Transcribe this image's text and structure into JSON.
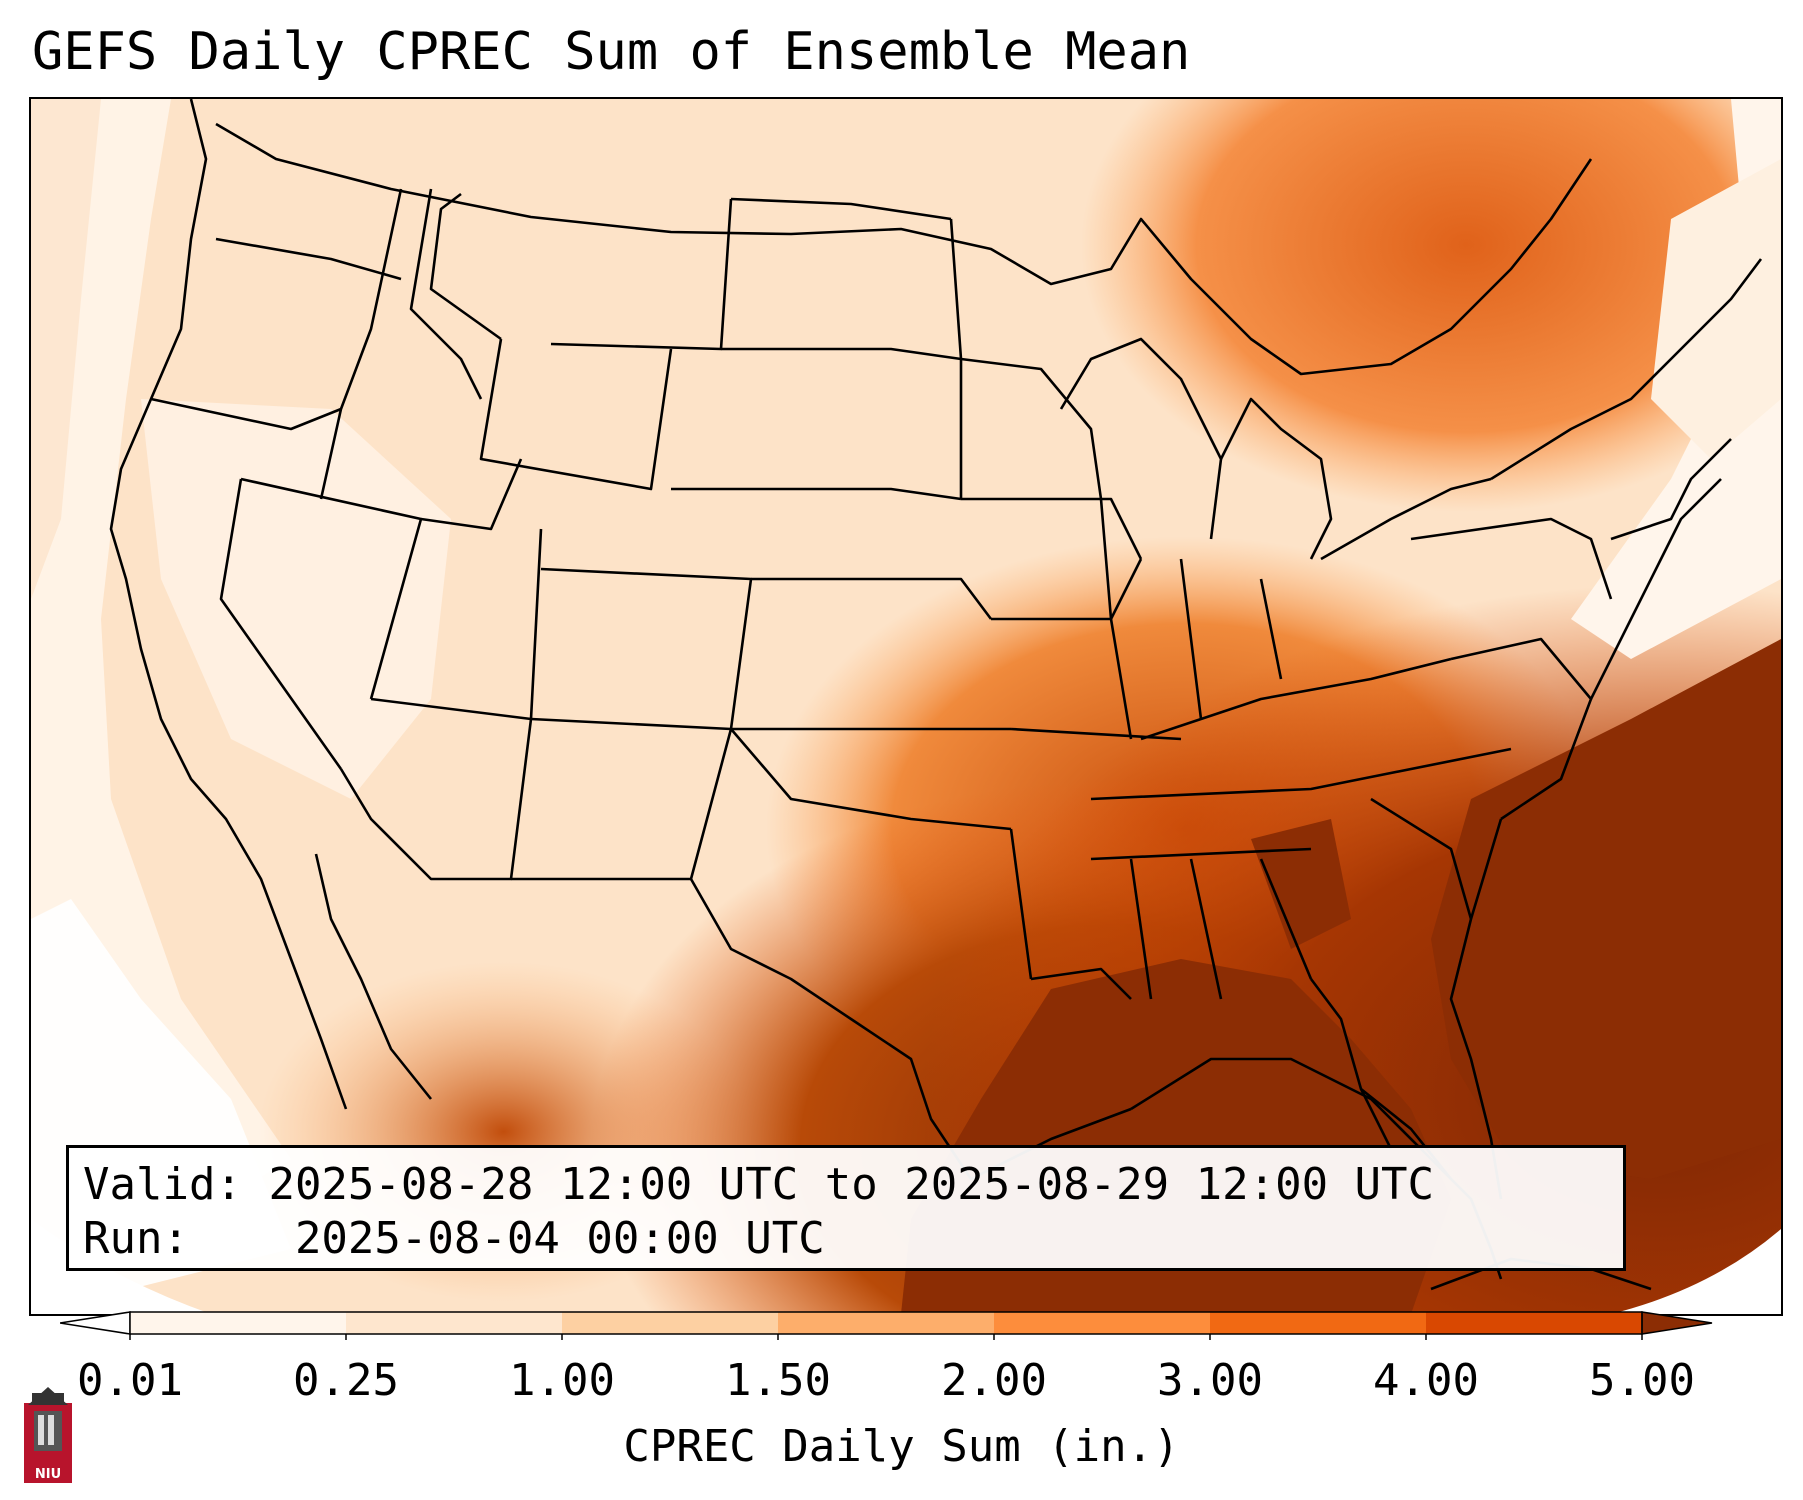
{
  "title": "GEFS Daily CPREC Sum of Ensemble Mean",
  "valid_label": "Valid:",
  "valid_value": "2025-08-28 12:00 UTC to 2025-08-29 12:00 UTC",
  "run_label": "Run:",
  "run_value": "2025-08-04 00:00 UTC",
  "colorbar": {
    "title": "CPREC Daily Sum (in.)",
    "tick_labels": [
      "0.01",
      "0.25",
      "1.00",
      "1.50",
      "2.00",
      "3.00",
      "4.00",
      "5.00"
    ],
    "colors": [
      "#fff5eb",
      "#fee6ce",
      "#fdd0a2",
      "#fdae6b",
      "#fd8d3c",
      "#f16913",
      "#d94801",
      "#8c2d04"
    ],
    "extend": "both"
  },
  "logo": {
    "text": "NIU",
    "color": "#b8142c"
  }
}
